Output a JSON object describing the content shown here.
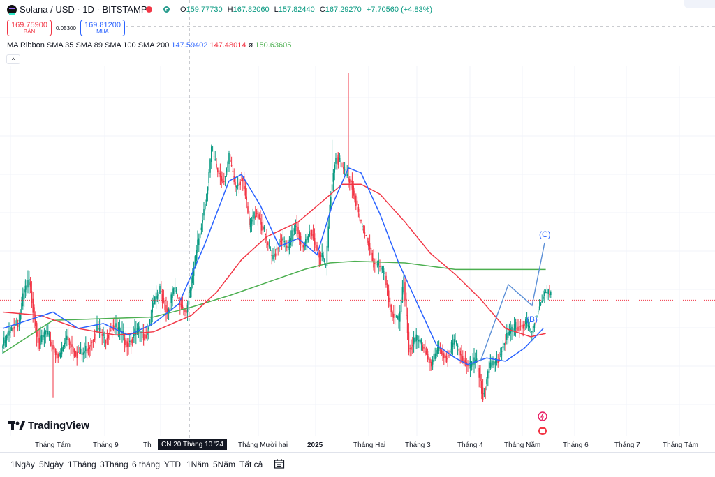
{
  "header": {
    "title": "Solana / USD · 1D · BITSTAMP",
    "ohlc": {
      "o_label": "O",
      "o": "159.77730",
      "h_label": "H",
      "h": "167.82060",
      "l_label": "L",
      "l": "157.82440",
      "c_label": "C",
      "c": "167.29270",
      "change": "+7.70560 (+4.83%)"
    },
    "sell": {
      "price": "169.75900",
      "label": "BÁN"
    },
    "buy": {
      "price": "169.81200",
      "label": "MUA"
    },
    "spread": "0.05300",
    "indicator": {
      "name": "MA Ribbon SMA 35 SMA 89 SMA 100 SMA 200",
      "v1": "147.59402",
      "v2": "147.48014",
      "v3": "ø",
      "v4": "150.63605"
    },
    "collapse_glyph": "^"
  },
  "colors": {
    "up": "#089981",
    "down": "#f23645",
    "sma35": "#2962ff",
    "sma89": "#f23645",
    "sma200": "#4caf50",
    "wave": "#5b8fd6"
  },
  "logo": "TradingView",
  "crosshair_label": "CN 20 Tháng 10 '24",
  "time_axis": [
    "Tháng Tám",
    "Tháng 9",
    "Th",
    "Tháng Mười hai",
    "2025",
    "Tháng Hai",
    "Tháng 3",
    "Tháng 4",
    "Tháng Năm",
    "Tháng 6",
    "Tháng 7",
    "Tháng Tám"
  ],
  "ranges": [
    "1Ngày",
    "5Ngày",
    "1Tháng",
    "3Tháng",
    "6 tháng",
    "YTD",
    "1Năm",
    "5Năm",
    "Tất cả"
  ],
  "wave_labels": [
    "(C)",
    "(B)"
  ],
  "chart_data": {
    "type": "candlestick",
    "title": "Solana / USD · 1D · BITSTAMP",
    "xlabel": "",
    "ylabel": "",
    "grid": true,
    "ylim": [
      90,
      310
    ],
    "current_price": 167.29,
    "x": [
      "Tháng Tám",
      "Tháng 9",
      "Th",
      "Tháng Mười hai",
      "2025",
      "Tháng Hai",
      "Tháng 3",
      "Tháng 4",
      "Tháng Năm",
      "Tháng 6",
      "Tháng 7",
      "Tháng Tám"
    ],
    "price_anchors": [
      [
        0,
        138
      ],
      [
        8,
        150
      ],
      [
        14,
        155
      ],
      [
        18,
        172
      ],
      [
        22,
        178
      ],
      [
        26,
        158
      ],
      [
        30,
        140
      ],
      [
        35,
        148
      ],
      [
        40,
        140
      ],
      [
        46,
        132
      ],
      [
        52,
        145
      ],
      [
        58,
        136
      ],
      [
        64,
        134
      ],
      [
        70,
        140
      ],
      [
        76,
        150
      ],
      [
        82,
        143
      ],
      [
        88,
        152
      ],
      [
        94,
        148
      ],
      [
        100,
        141
      ],
      [
        108,
        148
      ],
      [
        115,
        146
      ],
      [
        120,
        163
      ],
      [
        126,
        173
      ],
      [
        132,
        160
      ],
      [
        137,
        174
      ],
      [
        142,
        165
      ],
      [
        147,
        160
      ],
      [
        152,
        182
      ],
      [
        158,
        210
      ],
      [
        163,
        232
      ],
      [
        167,
        258
      ],
      [
        171,
        248
      ],
      [
        176,
        240
      ],
      [
        181,
        253
      ],
      [
        186,
        236
      ],
      [
        192,
        243
      ],
      [
        197,
        212
      ],
      [
        203,
        222
      ],
      [
        209,
        208
      ],
      [
        215,
        192
      ],
      [
        222,
        205
      ],
      [
        228,
        198
      ],
      [
        234,
        215
      ],
      [
        240,
        198
      ],
      [
        246,
        210
      ],
      [
        252,
        196
      ],
      [
        258,
        188
      ],
      [
        262,
        234
      ],
      [
        266,
        256
      ],
      [
        270,
        250
      ],
      [
        274,
        243
      ],
      [
        278,
        240
      ],
      [
        282,
        228
      ],
      [
        286,
        212
      ],
      [
        292,
        202
      ],
      [
        296,
        190
      ],
      [
        300,
        188
      ],
      [
        305,
        182
      ],
      [
        310,
        160
      ],
      [
        316,
        154
      ],
      [
        320,
        178
      ],
      [
        324,
        138
      ],
      [
        330,
        143
      ],
      [
        336,
        138
      ],
      [
        342,
        128
      ],
      [
        348,
        138
      ],
      [
        354,
        132
      ],
      [
        360,
        142
      ],
      [
        366,
        133
      ],
      [
        372,
        126
      ],
      [
        378,
        130
      ],
      [
        383,
        110
      ],
      [
        388,
        126
      ],
      [
        394,
        130
      ],
      [
        400,
        142
      ],
      [
        405,
        148
      ],
      [
        410,
        151
      ],
      [
        416,
        153
      ],
      [
        422,
        147
      ],
      [
        426,
        160
      ],
      [
        432,
        172
      ],
      [
        437,
        170
      ]
    ],
    "sma35": [
      [
        0,
        150
      ],
      [
        20,
        155
      ],
      [
        40,
        160
      ],
      [
        60,
        150
      ],
      [
        80,
        153
      ],
      [
        100,
        146
      ],
      [
        120,
        153
      ],
      [
        140,
        165
      ],
      [
        160,
        200
      ],
      [
        180,
        240
      ],
      [
        190,
        244
      ],
      [
        205,
        225
      ],
      [
        220,
        200
      ],
      [
        235,
        205
      ],
      [
        250,
        195
      ],
      [
        262,
        225
      ],
      [
        275,
        248
      ],
      [
        285,
        245
      ],
      [
        300,
        220
      ],
      [
        315,
        190
      ],
      [
        330,
        165
      ],
      [
        345,
        140
      ],
      [
        360,
        132
      ],
      [
        370,
        128
      ],
      [
        385,
        132
      ],
      [
        400,
        130
      ],
      [
        415,
        138
      ],
      [
        430,
        150
      ]
    ],
    "sma89": [
      [
        0,
        160
      ],
      [
        30,
        158
      ],
      [
        60,
        150
      ],
      [
        90,
        146
      ],
      [
        120,
        148
      ],
      [
        150,
        158
      ],
      [
        170,
        172
      ],
      [
        190,
        192
      ],
      [
        210,
        206
      ],
      [
        235,
        215
      ],
      [
        255,
        228
      ],
      [
        270,
        238
      ],
      [
        285,
        238
      ],
      [
        300,
        232
      ],
      [
        320,
        215
      ],
      [
        340,
        196
      ],
      [
        360,
        183
      ],
      [
        380,
        168
      ],
      [
        400,
        150
      ],
      [
        420,
        145
      ],
      [
        432,
        147
      ]
    ],
    "sma200": [
      [
        0,
        135
      ],
      [
        40,
        155
      ],
      [
        80,
        156
      ],
      [
        120,
        157
      ],
      [
        150,
        163
      ],
      [
        180,
        170
      ],
      [
        210,
        178
      ],
      [
        240,
        186
      ],
      [
        260,
        190
      ],
      [
        280,
        191
      ],
      [
        320,
        190
      ],
      [
        360,
        186
      ],
      [
        400,
        186
      ],
      [
        432,
        186
      ]
    ]
  }
}
